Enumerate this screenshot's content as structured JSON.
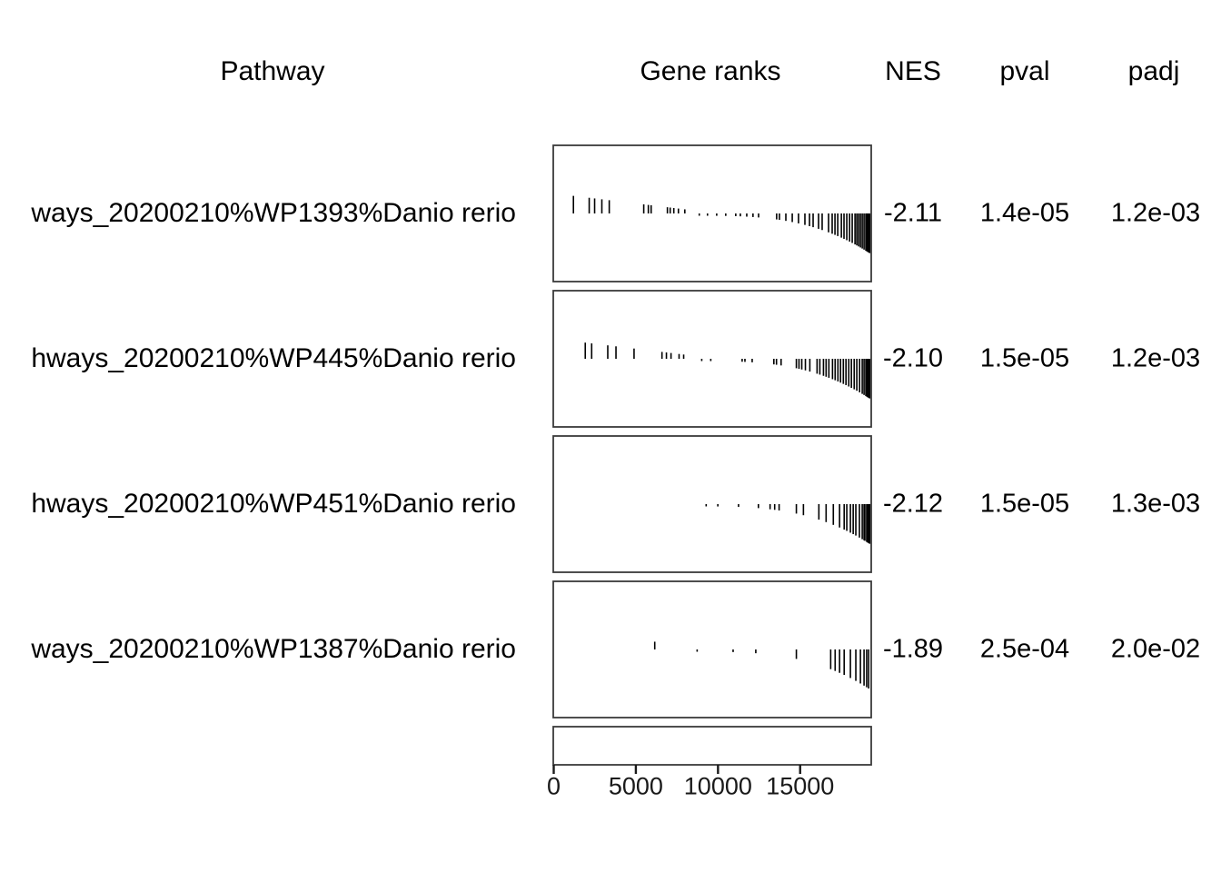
{
  "figure": {
    "background": "#ffffff",
    "text_color": "#000000",
    "box_border_color": "#3a3a3a",
    "tick_color": "#000000"
  },
  "header": {
    "pathway": "Pathway",
    "gene_ranks": "Gene ranks",
    "nes": "NES",
    "pval": "pval",
    "padj": "padj"
  },
  "chart_data": {
    "type": "table",
    "title": "GSEA table: pathway gene-rank tick plots with enrichment statistics",
    "columns": [
      "Pathway",
      "Gene ranks",
      "NES",
      "pval",
      "padj"
    ],
    "x_axis": {
      "ticks": [
        0,
        5000,
        10000,
        15000
      ],
      "tick_labels": [
        "0",
        "5000",
        "10000",
        "15000"
      ],
      "max_rank": 19300,
      "grid": false
    },
    "rows": [
      {
        "pathway": "ways_20200210%WP1393%Danio rerio",
        "nes": "-2.11",
        "pval": "1.4e-05",
        "padj": "1.2e-03",
        "ranks": [
          1200,
          2160,
          2490,
          2930,
          3380,
          5480,
          5760,
          5930,
          6920,
          7090,
          7310,
          7590,
          7980,
          8860,
          9360,
          9920,
          10470,
          11080,
          11360,
          11750,
          12130,
          12470,
          13570,
          13740,
          14130,
          14520,
          14900,
          15290,
          15570,
          15790,
          16120,
          16340,
          16730,
          16950,
          17120,
          17290,
          17510,
          17670,
          17840,
          18010,
          18170,
          18340,
          18450,
          18560,
          18670,
          18780,
          18890,
          19000,
          19060,
          19110,
          19170,
          19230
        ]
      },
      {
        "pathway": "hways_20200210%WP445%Danio rerio",
        "nes": "-2.10",
        "pval": "1.5e-05",
        "padj": "1.2e-03",
        "ranks": [
          1920,
          2310,
          3290,
          3790,
          4890,
          6590,
          6860,
          7140,
          7630,
          7910,
          9010,
          9560,
          11470,
          11640,
          12080,
          13400,
          13560,
          13840,
          14770,
          14930,
          15100,
          15320,
          15590,
          16030,
          16200,
          16420,
          16580,
          16750,
          16970,
          17130,
          17300,
          17460,
          17630,
          17790,
          17960,
          18120,
          18290,
          18450,
          18620,
          18780,
          18890,
          19000,
          19060,
          19110,
          19170,
          19230
        ]
      },
      {
        "pathway": "hways_20200210%WP451%Danio rerio",
        "nes": "-2.12",
        "pval": "1.5e-05",
        "padj": "1.3e-03",
        "ranks": [
          9280,
          9990,
          11250,
          12460,
          13170,
          13450,
          13720,
          14770,
          15200,
          16140,
          16580,
          17020,
          17400,
          17680,
          17840,
          18060,
          18230,
          18390,
          18610,
          18780,
          18890,
          18940,
          19050,
          19110,
          19170,
          19230
        ]
      },
      {
        "pathway": "ways_20200210%WP1387%Danio rerio",
        "nes": "-1.89",
        "pval": "2.5e-04",
        "padj": "2.0e-02",
        "ranks": [
          6150,
          8730,
          10920,
          12300,
          14770,
          16860,
          17130,
          17400,
          17680,
          18060,
          18390,
          18670,
          18890,
          19050,
          19170
        ]
      }
    ]
  },
  "layout_note": "last panel is empty axis strip"
}
